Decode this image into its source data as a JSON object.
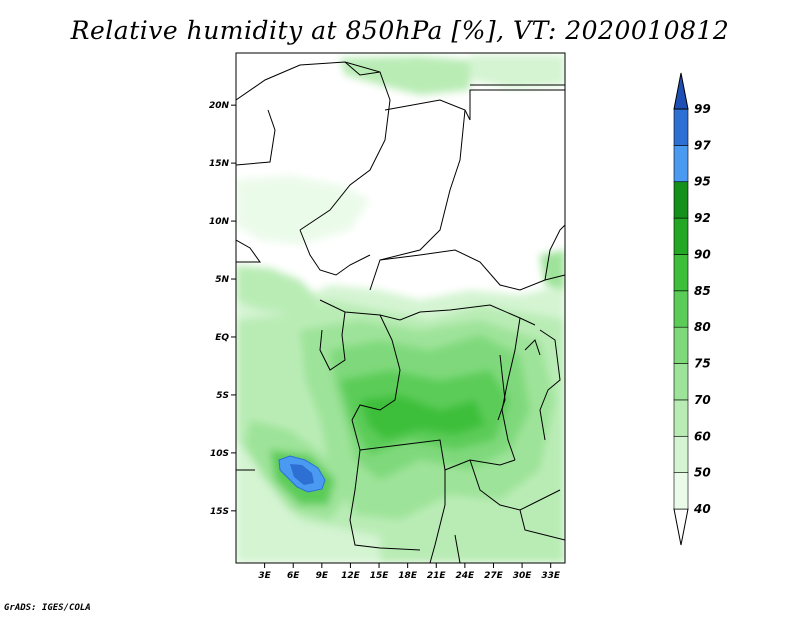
{
  "title": "Relative humidity at 850hPa [%], VT: 2020010812",
  "credit": "GrADS: IGES/COLA",
  "map": {
    "lat_range": [
      -19.5,
      24.5
    ],
    "lon_range": [
      0,
      34.5
    ],
    "lat_ticks": [
      {
        "value": 20,
        "label": "20N"
      },
      {
        "value": 15,
        "label": "15N"
      },
      {
        "value": 10,
        "label": "10N"
      },
      {
        "value": 5,
        "label": "5N"
      },
      {
        "value": 0,
        "label": "EQ"
      },
      {
        "value": -5,
        "label": "5S"
      },
      {
        "value": -10,
        "label": "10S"
      },
      {
        "value": -15,
        "label": "15S"
      }
    ],
    "lon_ticks": [
      {
        "value": 3,
        "label": "3E"
      },
      {
        "value": 6,
        "label": "6E"
      },
      {
        "value": 9,
        "label": "9E"
      },
      {
        "value": 12,
        "label": "12E"
      },
      {
        "value": 15,
        "label": "15E"
      },
      {
        "value": 18,
        "label": "18E"
      },
      {
        "value": 21,
        "label": "21E"
      },
      {
        "value": 24,
        "label": "24E"
      },
      {
        "value": 27,
        "label": "27E"
      },
      {
        "value": 30,
        "label": "30E"
      },
      {
        "value": 33,
        "label": "33E"
      }
    ]
  },
  "colorbar": {
    "levels": [
      "40",
      "50",
      "60",
      "70",
      "75",
      "80",
      "85",
      "90",
      "92",
      "95",
      "97",
      "99"
    ],
    "colors": [
      "#ffffff",
      "#ebfbea",
      "#d4f4d2",
      "#b9ecb5",
      "#9ee39a",
      "#7fd97b",
      "#5ccc58",
      "#3dbf3a",
      "#22a824",
      "#15901a",
      "#4a9af2",
      "#2d6fd2",
      "#1d4fb5"
    ]
  }
}
